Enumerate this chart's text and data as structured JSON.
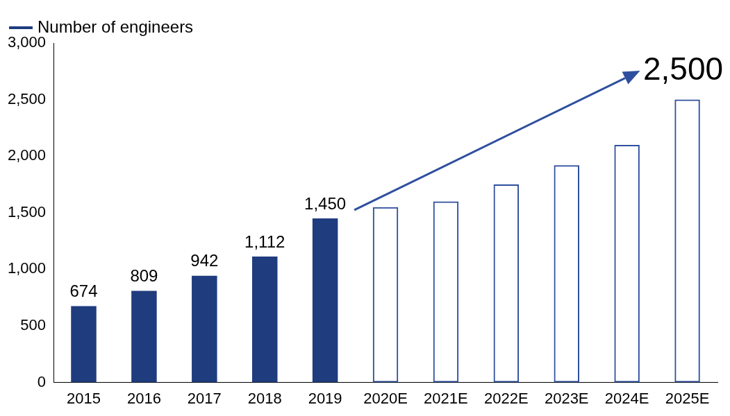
{
  "chart_data": {
    "type": "bar",
    "categories": [
      "2015",
      "2016",
      "2017",
      "2018",
      "2019",
      "2020E",
      "2021E",
      "2022E",
      "2023E",
      "2024E",
      "2025E"
    ],
    "series": [
      {
        "name": "Number of engineers",
        "color": "#1f3c7e",
        "values": [
          674,
          809,
          942,
          1112,
          1450,
          null,
          null,
          null,
          null,
          null,
          null
        ],
        "value_labels": [
          "674",
          "809",
          "942",
          "1,112",
          "1,450",
          null,
          null,
          null,
          null,
          null,
          null
        ]
      },
      {
        "color": "#2e4f9e",
        "line_style": "dashed",
        "values": [
          null,
          null,
          null,
          null,
          null,
          1550,
          1600,
          1750,
          1920,
          2100,
          2500
        ]
      }
    ],
    "stacked": true,
    "ylim": [
      0,
      3000
    ],
    "yticks": [
      0,
      {
        "value": 500,
        "label": "500"
      },
      {
        "value": 1000,
        "label": "1,000"
      },
      {
        "value": 1500,
        "label": "1,500"
      },
      {
        "value": 2000,
        "label": "2,000"
      },
      {
        "value": 2500,
        "label": "2,500"
      },
      {
        "value": 3000,
        "label": "3,000"
      }
    ],
    "grid": false,
    "legend": "top left",
    "annotations": [
      "2,500"
    ]
  }
}
